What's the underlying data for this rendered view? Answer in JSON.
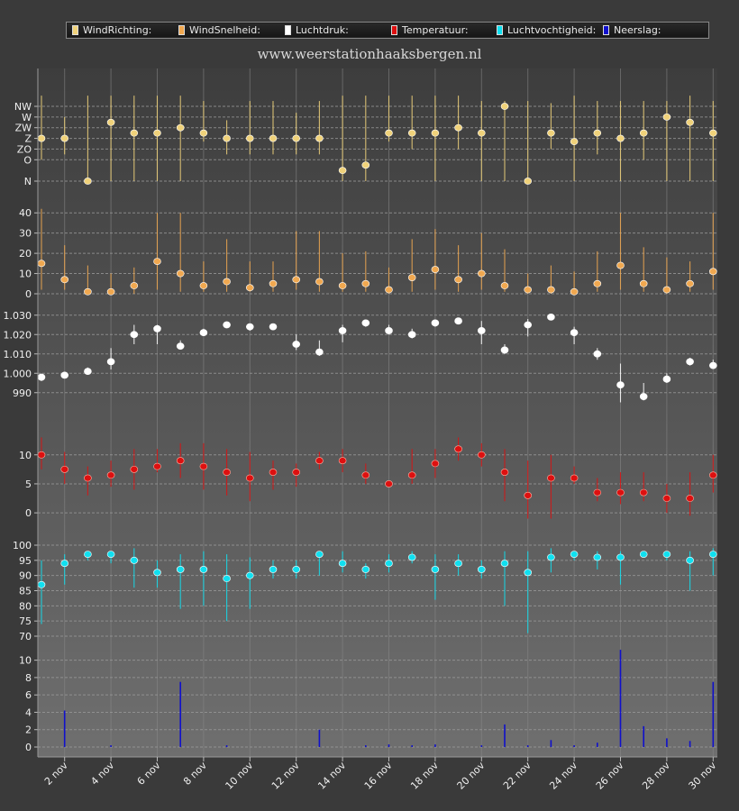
{
  "site_title": "www.weerstationhaaksbergen.nl",
  "legend": [
    {
      "label": "WindRichting:",
      "color": "#f0d27a"
    },
    {
      "label": "WindSnelheid:",
      "color": "#f0a850"
    },
    {
      "label": "Luchtdruk:",
      "color": "#ffffff"
    },
    {
      "label": "Temperatuur:",
      "color": "#dd1010"
    },
    {
      "label": "Luchtvochtigheid:",
      "color": "#10e0f0"
    },
    {
      "label": "Neerslag:",
      "color": "#1010cc"
    }
  ],
  "chart_data": {
    "type": "scatter",
    "days": [
      1,
      2,
      3,
      4,
      5,
      6,
      7,
      8,
      9,
      10,
      11,
      12,
      13,
      14,
      15,
      16,
      17,
      18,
      19,
      20,
      21,
      22,
      23,
      24,
      25,
      26,
      27,
      28,
      29,
      30
    ],
    "x_tick_labels": [
      "2 nov",
      "4 nov",
      "6 nov",
      "8 nov",
      "10 nov",
      "12 nov",
      "14 nov",
      "16 nov",
      "18 nov",
      "20 nov",
      "22 nov",
      "24 nov",
      "26 nov",
      "28 nov",
      "30 nov"
    ],
    "panels": [
      {
        "name": "WindRichting",
        "color": "#f0d27a",
        "tick_labels": [
          "N",
          "O",
          "ZO",
          "Z",
          "ZW",
          "W",
          "NW"
        ],
        "ticks": [
          0,
          2,
          3,
          4,
          5,
          6,
          7
        ],
        "ylim": [
          0,
          7
        ],
        "values": [
          4,
          4,
          0,
          5.5,
          4.5,
          4.5,
          5,
          4.5,
          4,
          4,
          4,
          4,
          4,
          1,
          1.5,
          4.5,
          4.5,
          4.5,
          5,
          4.5,
          7,
          0,
          4.5,
          3.7,
          4.5,
          4,
          4.5,
          6,
          5.5,
          4.5
        ],
        "low": [
          2,
          2.5,
          0,
          0,
          0,
          0,
          0,
          3.7,
          2.5,
          2.5,
          2.5,
          2.5,
          2.5,
          0,
          0,
          3.7,
          3,
          0,
          3,
          0,
          0,
          0,
          3,
          0,
          2.5,
          0,
          2,
          0,
          0,
          0
        ],
        "high": [
          8,
          6,
          8,
          8,
          8,
          8,
          8,
          7.5,
          5.7,
          7.5,
          7.5,
          6.4,
          7.5,
          8,
          8,
          8,
          8,
          8,
          8,
          7.5,
          7.5,
          7.5,
          7.3,
          8,
          7.5,
          7.5,
          7.5,
          7.5,
          8,
          7.5
        ]
      },
      {
        "name": "WindSnelheid",
        "color": "#f0a850",
        "ticks": [
          0,
          10,
          20,
          30,
          40
        ],
        "tick_labels": [
          "0",
          "10",
          "20",
          "30",
          "40"
        ],
        "ylim": [
          0,
          45
        ],
        "values": [
          15,
          7,
          1,
          1,
          4,
          16,
          10,
          4,
          6,
          3,
          5,
          7,
          6,
          4,
          5,
          2,
          8,
          12,
          7,
          10,
          4,
          2,
          2,
          1,
          5,
          14,
          5,
          2,
          5,
          11
        ],
        "low": [
          2,
          2,
          0,
          0,
          0,
          2,
          1,
          1,
          1,
          1,
          1,
          2,
          1,
          1,
          1,
          0,
          1,
          2,
          1,
          2,
          1,
          0,
          0,
          0,
          1,
          2,
          1,
          0,
          1,
          2
        ],
        "high": [
          42,
          24,
          14,
          10,
          13,
          40,
          40,
          16,
          27,
          16,
          16,
          31,
          31,
          20,
          21,
          13,
          27,
          32,
          24,
          30,
          22,
          10,
          14,
          11,
          21,
          40,
          23,
          18,
          16,
          40
        ]
      },
      {
        "name": "Luchtdruk",
        "color": "#ffffff",
        "ticks": [
          990,
          1000,
          1010,
          1020,
          1030
        ],
        "tick_labels": [
          "990",
          "1.000",
          "1.010",
          "1.020",
          "1.030"
        ],
        "ylim": [
          975,
          1035
        ],
        "values": [
          998,
          999,
          1001,
          1006,
          1020,
          1023,
          1014,
          1021,
          1025,
          1024,
          1024,
          1015,
          1011,
          1022,
          1026,
          1022,
          1020,
          1026,
          1027,
          1022,
          1012,
          1025,
          1029,
          1021,
          1010,
          994,
          988,
          997,
          1006,
          1004
        ],
        "low": [
          996,
          998,
          1000,
          1002,
          1015,
          1015,
          1013,
          1020,
          1024,
          1022,
          1023,
          1012,
          1009,
          1016,
          1024,
          1020,
          1018,
          1024,
          1026,
          1015,
          1010,
          1019,
          1028,
          1015,
          1007,
          985,
          986,
          995,
          1004,
          1003
        ],
        "high": [
          999,
          1000,
          1003,
          1013,
          1025,
          1025,
          1017,
          1023,
          1026,
          1025,
          1025,
          1020,
          1017,
          1025,
          1027,
          1025,
          1023,
          1027,
          1028,
          1027,
          1015,
          1028,
          1030,
          1024,
          1013,
          1005,
          995,
          1000,
          1008,
          1007
        ]
      },
      {
        "name": "Temperatuur",
        "color": "#dd1010",
        "ticks": [
          0,
          5,
          10
        ],
        "tick_labels": [
          "0",
          "5",
          "10"
        ],
        "ylim": [
          -2,
          14
        ],
        "values": [
          10,
          7.5,
          6,
          6.5,
          7.5,
          8,
          9,
          8,
          7,
          6,
          7,
          7,
          9,
          9,
          6.5,
          5,
          6.5,
          8.5,
          11,
          10,
          7,
          3,
          6,
          6,
          3.5,
          3.5,
          3.5,
          2.5,
          2.5,
          6.5
        ],
        "low": [
          7.5,
          5,
          3,
          4.5,
          4,
          7,
          6,
          4,
          3,
          2,
          4,
          4.5,
          7.5,
          7,
          5,
          4.5,
          5,
          6,
          9,
          8,
          2,
          -1,
          -1,
          5,
          2,
          1.5,
          2,
          0,
          -0.5,
          3.5
        ],
        "high": [
          13,
          10.5,
          8,
          9,
          11,
          11,
          12,
          12,
          11,
          10.5,
          9,
          8.5,
          10.5,
          11,
          8.5,
          5.5,
          11,
          11,
          13,
          12,
          11,
          9,
          10,
          8,
          6,
          7,
          7,
          5,
          7,
          10
        ]
      },
      {
        "name": "Luchtvochtigheid",
        "color": "#10e0f0",
        "ticks": [
          70,
          75,
          80,
          85,
          90,
          95,
          100
        ],
        "tick_labels": [
          "70",
          "75",
          "80",
          "85",
          "90",
          "95",
          "100"
        ],
        "ylim": [
          70,
          100
        ],
        "values": [
          87,
          94,
          97,
          97,
          95,
          91,
          92,
          92,
          89,
          90,
          92,
          92,
          97,
          94,
          92,
          94,
          96,
          92,
          94,
          92,
          94,
          91,
          96,
          97,
          96,
          96,
          97,
          97,
          95,
          97
        ],
        "low": [
          74,
          87,
          95,
          94,
          86,
          86,
          79,
          80,
          75,
          79,
          89,
          89,
          90,
          91,
          89,
          91,
          94,
          82,
          90,
          89,
          80,
          71,
          91,
          95,
          92,
          87,
          96,
          95,
          85,
          90
        ],
        "high": [
          95,
          97,
          98,
          98,
          99,
          95,
          97,
          98,
          97,
          96,
          95,
          95,
          98,
          98,
          94,
          97,
          98,
          97,
          97,
          95,
          98,
          98,
          99,
          98,
          98,
          98,
          98,
          98,
          98,
          99
        ]
      },
      {
        "name": "Neerslag",
        "color": "#1010cc",
        "ticks": [
          0,
          2,
          4,
          6,
          8,
          10
        ],
        "tick_labels": [
          "0",
          "2",
          "4",
          "6",
          "8",
          "10"
        ],
        "ylim": [
          0,
          11
        ],
        "values": [
          0,
          4.2,
          0,
          0.2,
          0,
          0,
          7.5,
          0,
          0.2,
          0,
          0,
          0,
          2,
          0,
          0.2,
          0.3,
          0.2,
          0.3,
          0,
          0.2,
          2.6,
          0.2,
          0.8,
          0.2,
          0.5,
          11.2,
          2.4,
          1,
          0.7,
          7.5
        ]
      }
    ]
  }
}
